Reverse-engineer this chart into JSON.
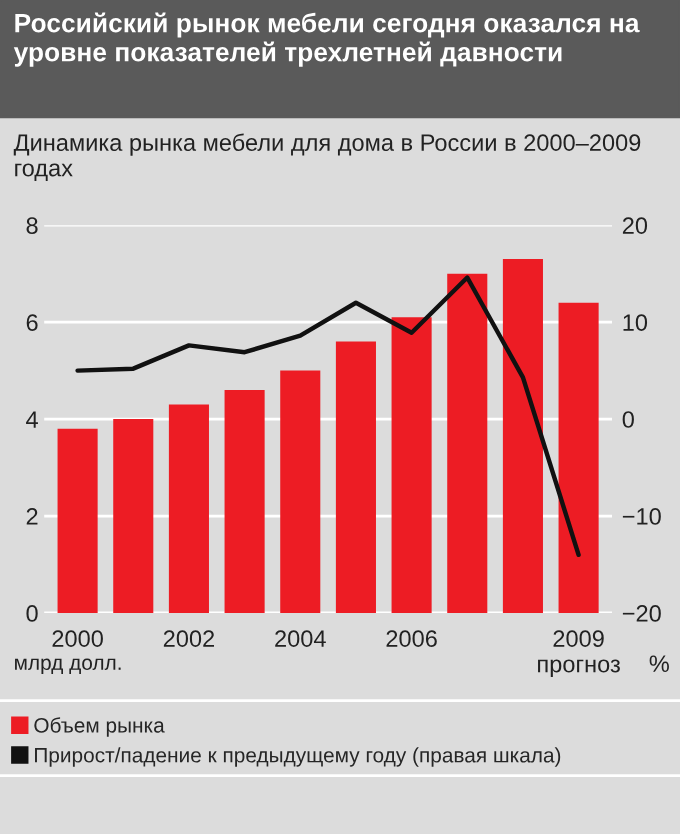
{
  "chart_data": {
    "type": "bar",
    "title": "Российский рынок мебели сегодня оказался на уровне показателей трехлетней давности",
    "subtitle": "Динамика рынка мебели для дома в России в 2000–2009 годах",
    "categories": [
      "2000",
      null,
      "2002",
      null,
      "2004",
      null,
      "2006",
      null,
      null,
      "2009\nпрогноз"
    ],
    "ylabel": "млрд долл.",
    "y2label": "%",
    "series": [
      {
        "name": "Объем рынка",
        "color": "#ed1c24",
        "values": [
          3.8,
          4.0,
          4.3,
          4.6,
          5.0,
          5.6,
          6.1,
          7.0,
          7.3,
          6.4
        ]
      },
      {
        "name": "Прирост/падение к предыдущему году (правая шкала)",
        "type": "line",
        "axis": "y2",
        "color": "#111111",
        "values": [
          5.0,
          5.2,
          7.6,
          6.9,
          8.6,
          12.0,
          8.9,
          14.6,
          4.3,
          -14.0
        ]
      }
    ],
    "ylim": [
      0,
      8
    ],
    "yticks": [
      0,
      2,
      4,
      6,
      8
    ],
    "y2lim": [
      -20,
      20
    ],
    "y2ticks": [
      {
        "value": -20,
        "label": "−20"
      },
      {
        "value": -10,
        "label": "−10"
      },
      0,
      10,
      20
    ],
    "grid": "y",
    "legend": "bottom"
  }
}
